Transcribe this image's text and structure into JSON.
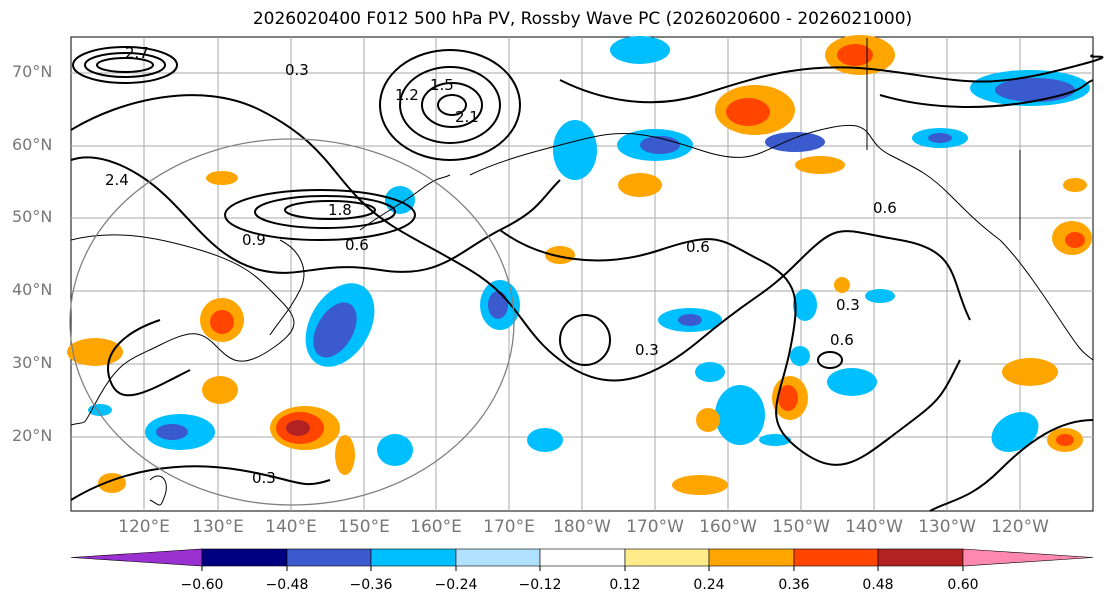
{
  "title": "2026020400 F012 500 hPa PV, Rossby Wave PC (2026020600 - 2026021000)",
  "lat_labels": [
    "70°N",
    "60°N",
    "50°N",
    "40°N",
    "30°N",
    "20°N"
  ],
  "lon_labels": [
    "120°E",
    "130°E",
    "140°E",
    "150°E",
    "160°E",
    "170°E",
    "180°W",
    "170°W",
    "160°W",
    "150°W",
    "140°W",
    "130°W",
    "120°W"
  ],
  "colorbar": {
    "ticks": [
      "−0.60",
      "−0.48",
      "−0.36",
      "−0.24",
      "−0.12",
      "0.12",
      "0.24",
      "0.36",
      "0.48",
      "0.60"
    ],
    "colors": [
      "#9b30d0",
      "#000080",
      "#3a5acd",
      "#00bfff",
      "#b0e2ff",
      "#ffffff",
      "#ffeb8a",
      "#ffa500",
      "#ff4500",
      "#b22222",
      "#ff88b0"
    ]
  },
  "contour_labels": [
    "0.3",
    "0.6",
    "0.9",
    "1.2",
    "1.5",
    "1.8",
    "2.1",
    "2.4",
    "2.7",
    "0.6",
    "0.6",
    "0.6",
    "0.3",
    "0.3",
    "0.3"
  ],
  "colors": {
    "land_line": "#000000",
    "grid": "#aaaaaa",
    "circle": "#808080"
  }
}
